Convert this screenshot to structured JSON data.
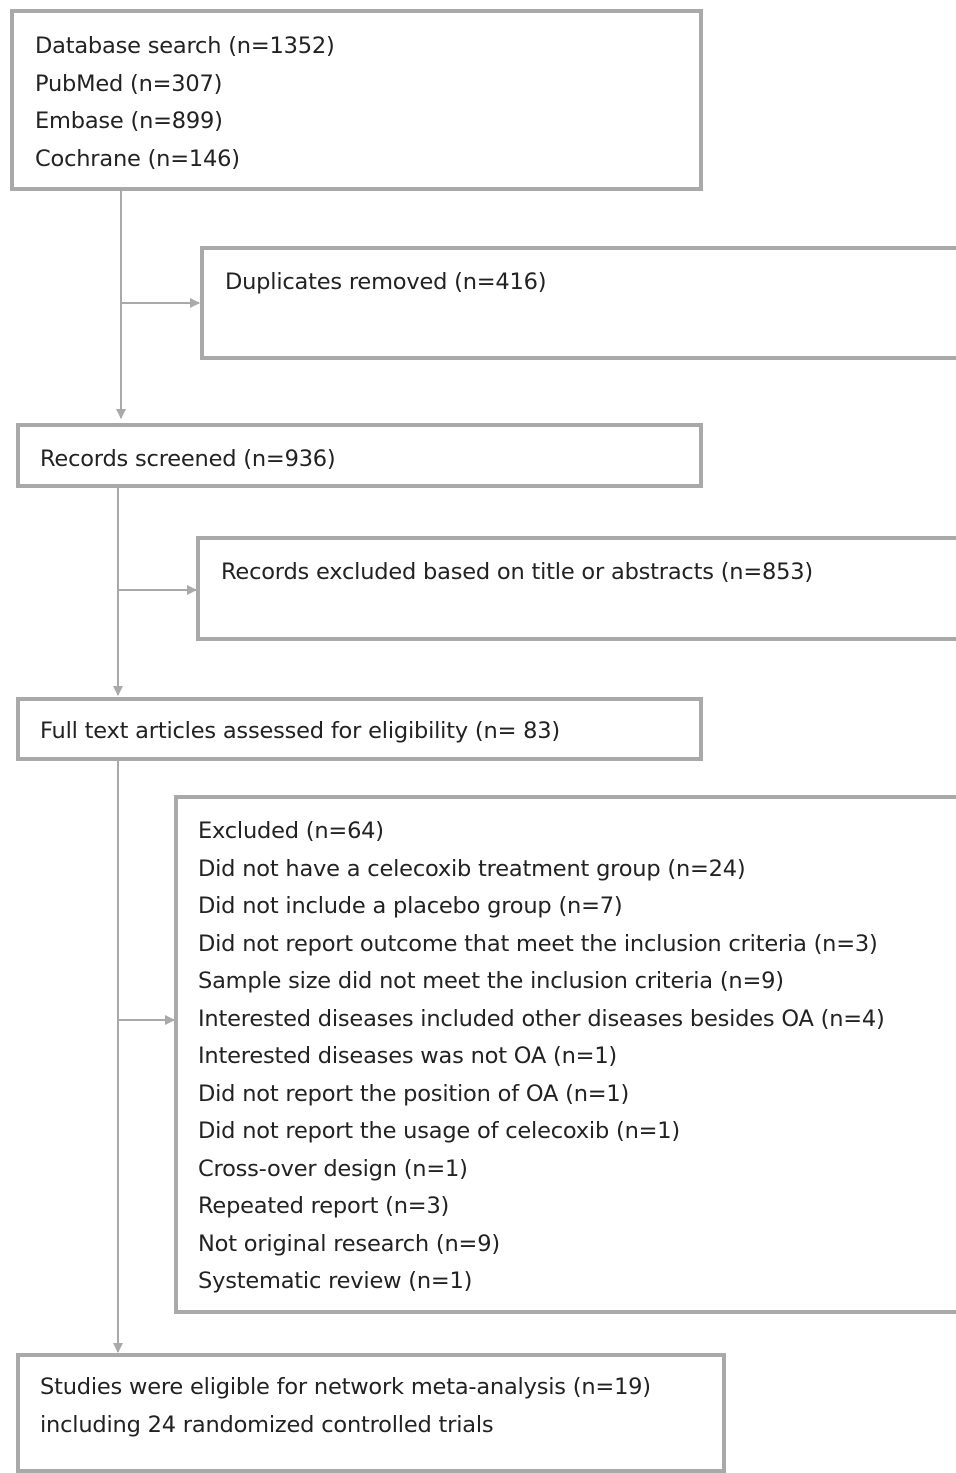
{
  "search": {
    "lines": [
      "Database search (n=1352)",
      "PubMed (n=307)",
      "Embase (n=899)",
      "Cochrane (n=146)"
    ]
  },
  "duplicates": {
    "text": "Duplicates removed (n=416)"
  },
  "screened": {
    "text": "Records screened (n=936)"
  },
  "excluded_title": {
    "text": "Records excluded based on title or abstracts (n=853)"
  },
  "fulltext": {
    "text": "Full text articles assessed for eligibility (n= 83)"
  },
  "excluded": {
    "lines": [
      "Excluded (n=64)",
      "Did not have a celecoxib treatment group (n=24)",
      "Did not include a placebo group (n=7)",
      "Did not report outcome that meet the inclusion criteria (n=3)",
      "Sample size did not meet the inclusion criteria (n=9)",
      "Interested diseases included other diseases besides OA (n=4)",
      "Interested diseases was not OA (n=1)",
      "Did not report the position of OA (n=1)",
      "Did not report the usage of celecoxib (n=1)",
      "Cross-over design (n=1)",
      "Repeated report (n=3)",
      "Not original research (n=9)",
      "Systematic review (n=1)"
    ]
  },
  "included": {
    "lines": [
      "Studies were eligible for network meta-analysis (n=19)",
      "including 24 randomized controlled trials"
    ]
  }
}
